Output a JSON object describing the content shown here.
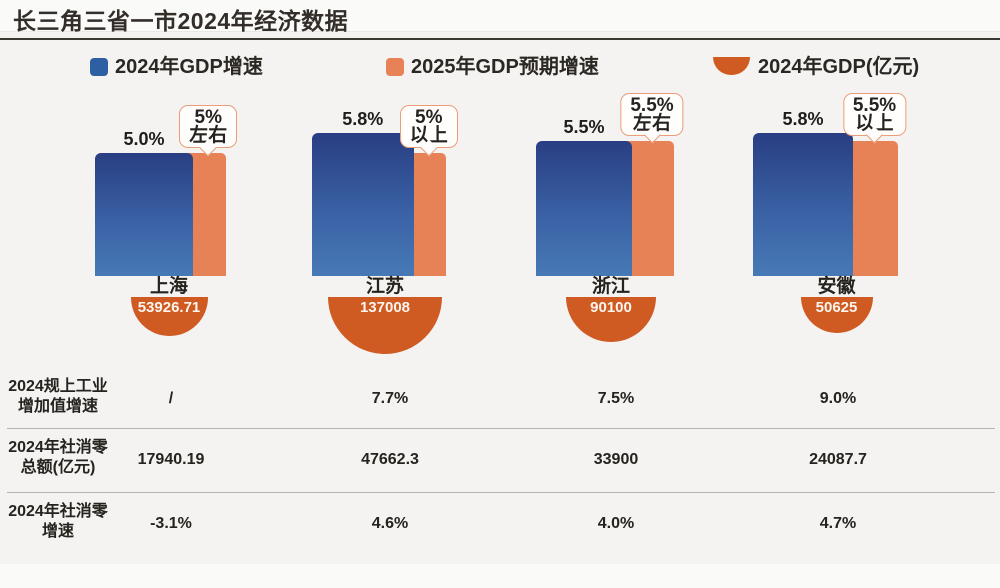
{
  "title": "长三角三省一市2024年经济数据",
  "legend": {
    "items": [
      {
        "label": "2024年GDP增速",
        "swatch": "blue-square",
        "color": "#2d5fa3"
      },
      {
        "label": "2025年GDP预期增速",
        "swatch": "orange-square",
        "color": "#e78156"
      },
      {
        "label": "2024年GDP(亿元)",
        "swatch": "orange-semicircle",
        "color": "#cf5a22"
      }
    ]
  },
  "chart_data": {
    "type": "bar",
    "categories": [
      "上海",
      "江苏",
      "浙江",
      "安徽"
    ],
    "series": [
      {
        "name": "2024年GDP增速",
        "unit": "%",
        "values": [
          5.0,
          5.8,
          5.5,
          5.8
        ],
        "labels": [
          "5.0%",
          "5.8%",
          "5.5%",
          "5.8%"
        ],
        "color_top": "#293e83",
        "color_bottom": "#4779b6"
      },
      {
        "name": "2025年GDP预期增速",
        "unit": "%",
        "values": [
          5.0,
          5.0,
          5.5,
          5.5
        ],
        "labels": [
          "5%左右",
          "5%以上",
          "5.5%左右",
          "5.5%以上"
        ],
        "color": "#e78156"
      },
      {
        "name": "2024年GDP(亿元)",
        "unit": "亿元",
        "values": [
          53926.71,
          137008,
          90100,
          50625
        ],
        "labels": [
          "53926.71",
          "137008",
          "90100",
          "50625"
        ],
        "color": "#cf5a22"
      }
    ],
    "callouts": [
      [
        "5%",
        "左右"
      ],
      [
        "5%",
        "以上"
      ],
      [
        "5.5%",
        "左右"
      ],
      [
        "5.5%",
        "以上"
      ]
    ],
    "legend_position": "top",
    "grid": false,
    "bubble_note": "GDP总量以半圆面积示意"
  },
  "table": {
    "rows": [
      {
        "label_lines": [
          "2024规上工业",
          "增加值增速"
        ],
        "values": [
          "/",
          "7.7%",
          "7.5%",
          "9.0%"
        ]
      },
      {
        "label_lines": [
          "2024年社消零",
          "总额(亿元)"
        ],
        "values": [
          "17940.19",
          "47662.3",
          "33900",
          "24087.7"
        ]
      },
      {
        "label_lines": [
          "2024年社消零",
          "增速"
        ],
        "values": [
          "-3.1%",
          "4.6%",
          "4.0%",
          "4.7%"
        ]
      }
    ]
  },
  "colors": {
    "background": "#f4f3f1",
    "title_rule": "#3b3731",
    "bar_blue_top": "#293e83",
    "bar_blue_bottom": "#4779b6",
    "bar_orange": "#e78156",
    "semicircle_orange": "#cf5a22",
    "text": "#26221e",
    "separator": "#b7b4b0"
  }
}
